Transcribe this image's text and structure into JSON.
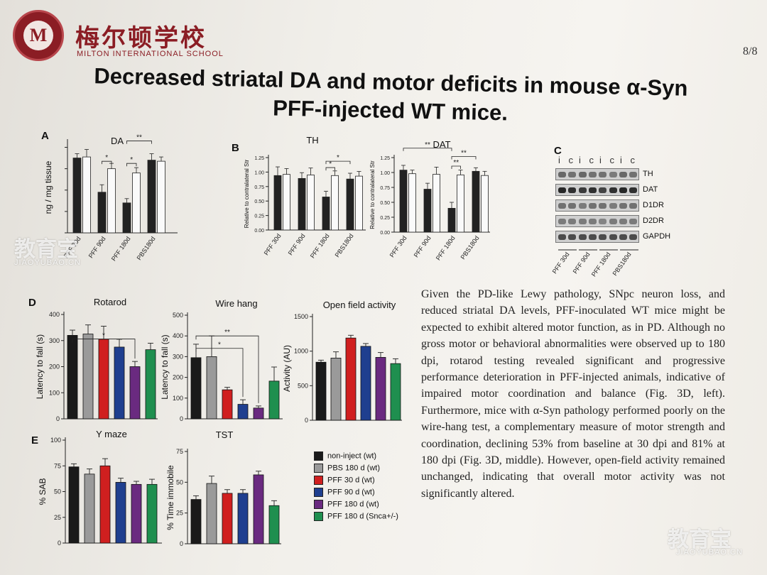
{
  "header": {
    "school_name_cn": "梅尔顿学校",
    "school_name_en": "MILTON INTERNATIONAL SCHOOL",
    "page_number": "8/8",
    "logo_letter": "M"
  },
  "title_line1": "Decreased striatal DA and motor deficits in mouse α-Syn",
  "title_line2": "PFF-injected WT mice.",
  "panels": {
    "a": "A",
    "b": "B",
    "c": "C",
    "d": "D",
    "e": "E"
  },
  "legend": {
    "items": [
      {
        "label": "non-inject (wt)",
        "color": "#1a1a1a"
      },
      {
        "label": "PBS 180 d (wt)",
        "color": "#9a9a9a"
      },
      {
        "label": "PFF 30 d (wt)",
        "color": "#d01f1f"
      },
      {
        "label": "PFF 90 d (wt)",
        "color": "#1f3f8f"
      },
      {
        "label": "PFF 180 d (wt)",
        "color": "#6a2a80"
      },
      {
        "label": "PFF 180 d (Snca+/-)",
        "color": "#1f8f4f"
      }
    ]
  },
  "western_blot": {
    "lane_header": [
      "i",
      "c",
      "i",
      "c",
      "i",
      "c",
      "i",
      "c"
    ],
    "proteins": [
      "TH",
      "DAT",
      "D1DR",
      "D2DR",
      "GAPDH"
    ],
    "groups": [
      "PFF 30d",
      "PFF 90d",
      "PFF 180d",
      "PBS180d"
    ]
  },
  "paragraph": "Given the PD-like Lewy pathology, SNpc neuron loss, and reduced striatal DA levels, PFF-inoculated WT mice might be expected to exhibit altered motor function, as in PD. Although no gross motor or behavioral abnormalities were observed up to 180 dpi, rotarod testing revealed significant and progressive performance deterioration in PFF-injected animals, indicative of impaired motor coordination and balance (Fig. 3D, left). Furthermore, mice with α-Syn pathology performed poorly on the wire-hang test, a complementary measure of motor strength and coordination, declining 53% from baseline at 30 dpi and 81% at 180 dpi (Fig. 3D, middle). However, open-field activity remained unchanged, indicating that overall motor activity was not significantly altered.",
  "watermark": {
    "text": "教育宝",
    "sub": "JIAOYUBAO.CN"
  },
  "chart_data": [
    {
      "id": "A-DA",
      "type": "bar",
      "title": "DA",
      "ylabel": "ng / mg tissue",
      "categories": [
        "PFF 30d",
        "PFF 90d",
        "PFF 180d",
        "PBS180d"
      ],
      "series": [
        {
          "name": "i",
          "values": [
            7.0,
            3.8,
            2.8,
            6.8
          ]
        },
        {
          "name": "c",
          "values": [
            7.1,
            6.0,
            5.6,
            6.7
          ]
        }
      ],
      "errors": [
        [
          0.4,
          0.7,
          0.4,
          0.6
        ],
        [
          0.7,
          0.5,
          0.5,
          0.4
        ]
      ],
      "ylim": [
        0,
        8.5
      ],
      "significance": [
        "*",
        "*",
        "**"
      ]
    },
    {
      "id": "B-TH",
      "type": "bar",
      "title": "TH",
      "ylabel": "Relative to contralateral Str",
      "categories": [
        "PFF 30d",
        "PFF 90d",
        "PFF 180d",
        "PBS180d"
      ],
      "series": [
        {
          "name": "i",
          "values": [
            0.94,
            0.89,
            0.57,
            0.88
          ]
        },
        {
          "name": "c",
          "values": [
            0.96,
            0.95,
            0.94,
            0.93
          ]
        }
      ],
      "errors": [
        [
          0.15,
          0.1,
          0.1,
          0.1
        ],
        [
          0.1,
          0.12,
          0.08,
          0.08
        ]
      ],
      "yticks": [
        "0.00",
        "0.25",
        "0.50",
        "0.75",
        "1.00",
        "1.25"
      ],
      "ylim": [
        0,
        1.25
      ],
      "significance": [
        "*",
        "*"
      ]
    },
    {
      "id": "B-DAT",
      "type": "bar",
      "title": "DAT",
      "ylabel": "Relative to contralateral Str",
      "categories": [
        "PFF 30d",
        "PFF 90d",
        "PFF 180d",
        "PBS180d"
      ],
      "series": [
        {
          "name": "i",
          "values": [
            1.04,
            0.72,
            0.4,
            1.02
          ]
        },
        {
          "name": "c",
          "values": [
            0.98,
            0.97,
            0.96,
            0.95
          ]
        }
      ],
      "errors": [
        [
          0.08,
          0.1,
          0.1,
          0.06
        ],
        [
          0.06,
          0.12,
          0.08,
          0.07
        ]
      ],
      "yticks": [
        "0.00",
        "0.25",
        "0.50",
        "0.75",
        "1.00",
        "1.25"
      ],
      "ylim": [
        0,
        1.25
      ],
      "significance": [
        "**",
        "**",
        "**"
      ]
    },
    {
      "id": "D-rotarod",
      "type": "bar",
      "title": "Rotarod",
      "ylabel": "Latency to fall (s)",
      "values": [
        320,
        325,
        305,
        275,
        200,
        265
      ],
      "errors": [
        20,
        35,
        50,
        30,
        20,
        25
      ],
      "yticks": [
        "0",
        "100",
        "200",
        "300",
        "400"
      ],
      "ylim": [
        0,
        400
      ],
      "significance": [
        "*"
      ]
    },
    {
      "id": "D-wirehang",
      "type": "bar",
      "title": "Wire hang",
      "ylabel": "Latency to fall (s)",
      "values": [
        295,
        300,
        140,
        70,
        52,
        182
      ],
      "errors": [
        65,
        100,
        12,
        22,
        10,
        68
      ],
      "yticks": [
        "0",
        "100",
        "200",
        "300",
        "400",
        "500"
      ],
      "ylim": [
        0,
        500
      ],
      "significance": [
        "**",
        "*"
      ]
    },
    {
      "id": "D-openfield",
      "type": "bar",
      "title": "Open field activity",
      "ylabel": "Activity (AU)",
      "values": [
        840,
        900,
        1190,
        1070,
        910,
        820
      ],
      "errors": [
        30,
        90,
        40,
        40,
        70,
        70
      ],
      "yticks": [
        "0",
        "500",
        "1000",
        "1500"
      ],
      "ylim": [
        0,
        1500
      ]
    },
    {
      "id": "E-ymaze",
      "type": "bar",
      "title": "Y maze",
      "ylabel": "% SAB",
      "values": [
        74,
        67,
        75,
        59,
        57,
        57
      ],
      "errors": [
        3,
        5,
        7,
        4,
        3,
        5
      ],
      "yticks": [
        "0",
        "25",
        "50",
        "75",
        "100"
      ],
      "ylim": [
        0,
        100
      ]
    },
    {
      "id": "E-tst",
      "type": "bar",
      "title": "TST",
      "ylabel": "% Time immobile",
      "values": [
        36,
        49,
        41,
        41,
        56,
        31
      ],
      "errors": [
        3,
        6,
        3,
        3,
        3,
        4
      ],
      "yticks": [
        "0",
        "25",
        "50",
        "75"
      ],
      "ylim": [
        0,
        75
      ]
    }
  ]
}
